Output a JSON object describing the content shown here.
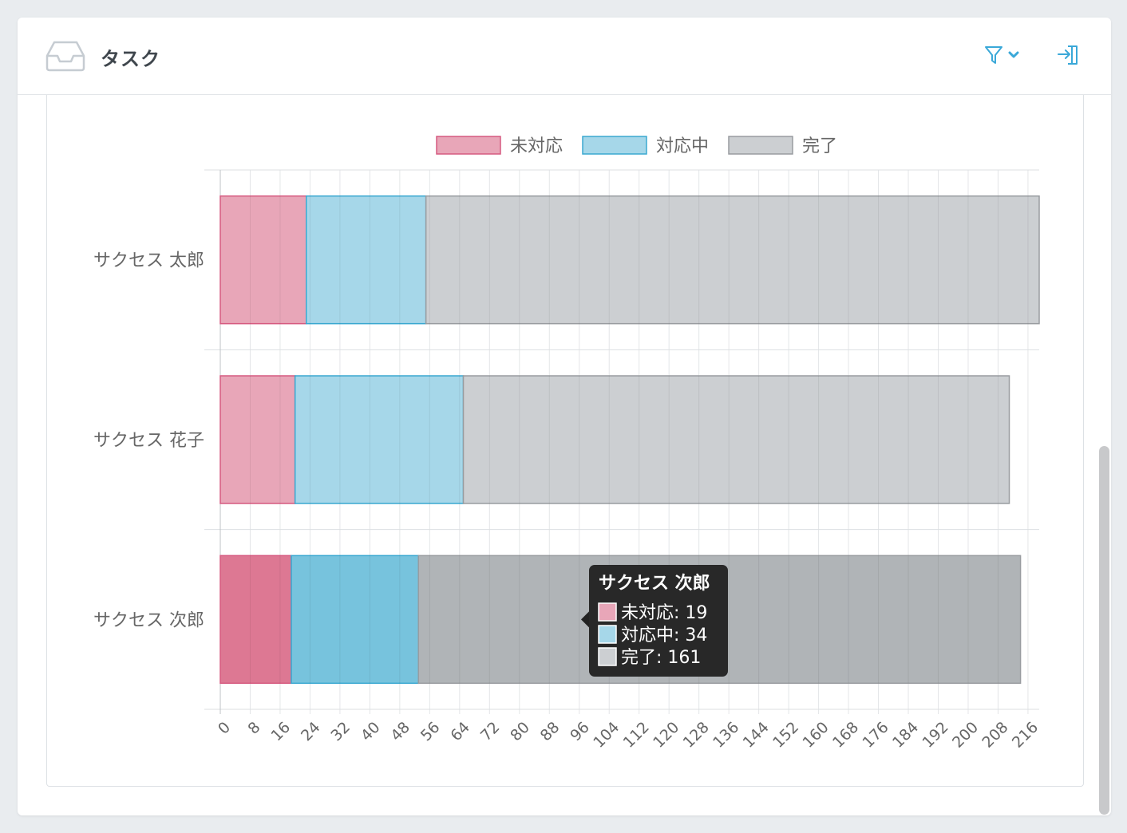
{
  "card": {
    "title": "タスク",
    "header_icon": "inbox-tray-icon",
    "filter_icon": "funnel-filter-icon",
    "filter_chevron_icon": "chevron-down-icon",
    "export_icon": "sign-in-export-icon"
  },
  "colors": {
    "accent": "#3aa8d8",
    "open": "#e8a6b8",
    "open_border": "#d65a80",
    "in_progress": "#a6d7e9",
    "in_progress_border": "#3aa8d0",
    "done": "#cccfd2",
    "done_border": "#999ca0",
    "tooltip_bg": "#222222"
  },
  "chart_data": {
    "type": "bar",
    "orientation": "horizontal",
    "stacked": true,
    "categories": [
      "サクセス 太郎",
      "サクセス 花子",
      "サクセス 次郎"
    ],
    "series": [
      {
        "name": "未対応",
        "values": [
          23,
          20,
          19
        ]
      },
      {
        "name": "対応中",
        "values": [
          32,
          45,
          34
        ]
      },
      {
        "name": "完了",
        "values": [
          164,
          146,
          161
        ]
      }
    ],
    "xlim": [
      0,
      219
    ],
    "xticks": [
      0,
      8,
      16,
      24,
      32,
      40,
      48,
      56,
      64,
      72,
      80,
      88,
      96,
      104,
      112,
      120,
      128,
      136,
      144,
      152,
      160,
      168,
      176,
      184,
      192,
      200,
      208,
      216
    ],
    "grid": true,
    "legend": "top",
    "hovered_category": 2,
    "tooltip": {
      "title": "サクセス 次郎",
      "items": [
        "未対応: 19",
        "対応中: 34",
        "完了: 161"
      ]
    }
  }
}
